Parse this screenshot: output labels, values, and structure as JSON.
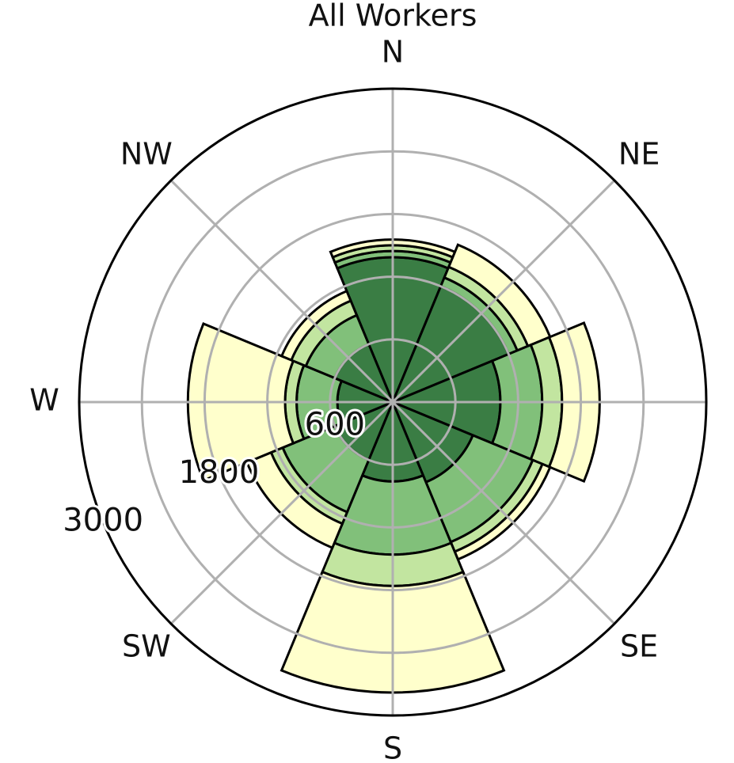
{
  "chart_data": {
    "type": "polar-bar",
    "title": "All Workers",
    "categories": [
      "N",
      "NE",
      "E",
      "SE",
      "S",
      "SW",
      "W",
      "NW"
    ],
    "theta_zero": "N",
    "theta_direction": "clockwise",
    "series": [
      {
        "color": "#3a7d44",
        "values": [
          1386,
          1200,
          1030,
          830,
          760,
          600,
          530,
          600
        ]
      },
      {
        "color": "#81c07a",
        "values": [
          60,
          90,
          400,
          620,
          700,
          540,
          390,
          300
        ]
      },
      {
        "color": "#c2e5a0",
        "values": [
          55,
          110,
          190,
          100,
          300,
          120,
          110,
          150
        ]
      },
      {
        "color": "#ffffcc",
        "values": [
          55,
          230,
          360,
          80,
          1020,
          250,
          930,
          100
        ]
      }
    ],
    "ylim": [
      0,
      3000
    ],
    "yticks": [
      600,
      {
        "value": 1200,
        "label": null
      },
      1800,
      {
        "value": 2400,
        "label": null
      },
      3000
    ],
    "grid": true
  }
}
